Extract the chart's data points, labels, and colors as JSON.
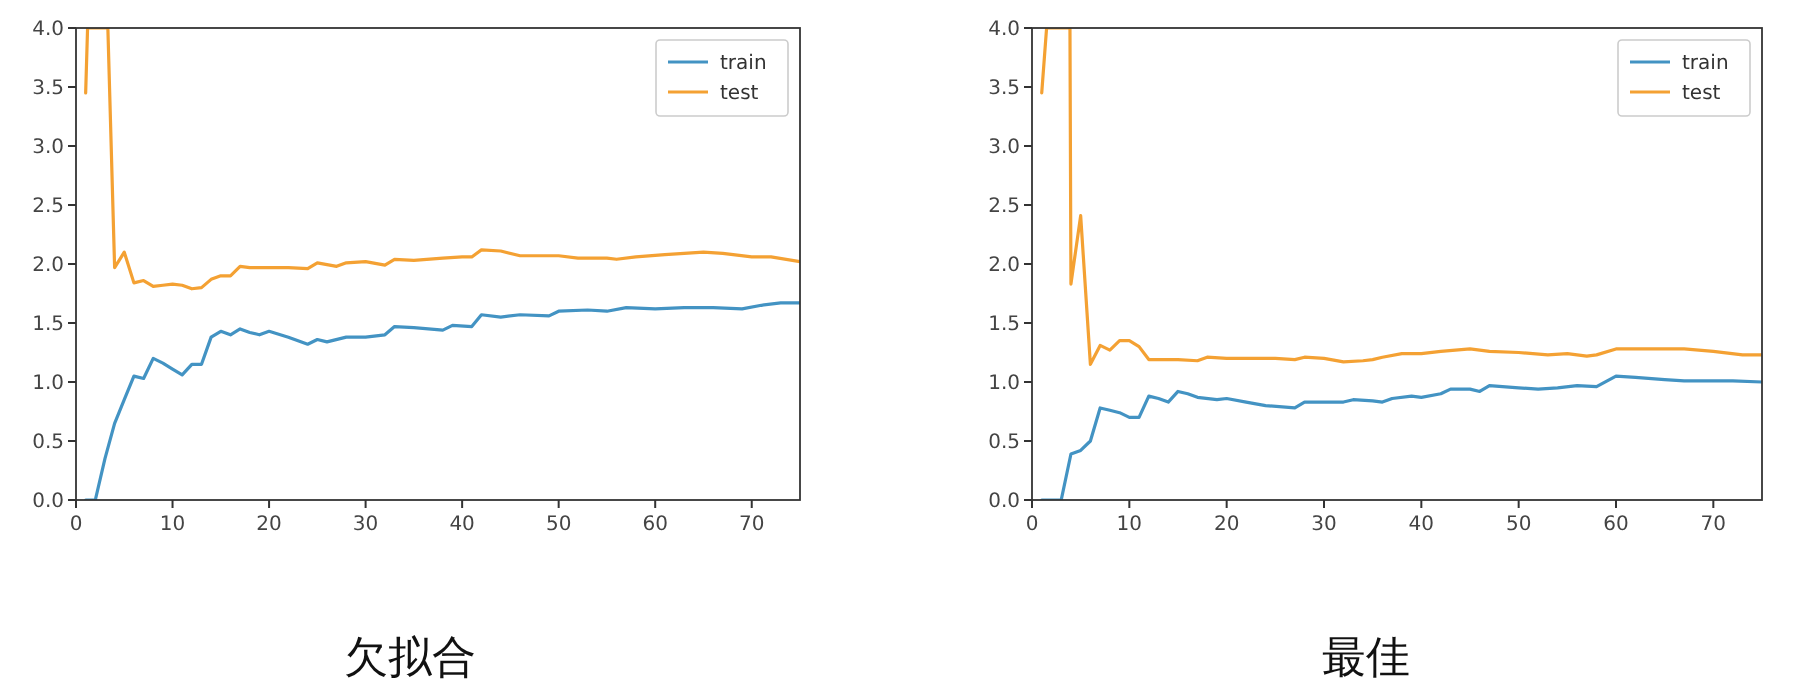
{
  "chart_data": [
    {
      "type": "line",
      "title": "欠拟合",
      "xlim": [
        0,
        75
      ],
      "ylim": [
        0,
        4
      ],
      "xticks": [
        0,
        10,
        20,
        30,
        40,
        50,
        60,
        70
      ],
      "yticks": [
        {
          "value": 0,
          "label": "0.0"
        },
        {
          "value": 0.5,
          "label": "0.5"
        },
        {
          "value": 1,
          "label": "1.0"
        },
        {
          "value": 1.5,
          "label": "1.5"
        },
        {
          "value": 2,
          "label": "2.0"
        },
        {
          "value": 2.5,
          "label": "2.5"
        },
        {
          "value": 3,
          "label": "3.0"
        },
        {
          "value": 3.5,
          "label": "3.5"
        },
        {
          "value": 4,
          "label": "4.0"
        }
      ],
      "legend": "top right",
      "grid": false,
      "series": [
        {
          "name": "train",
          "color": "#4393c3",
          "x": [
            1,
            2,
            3,
            4,
            5,
            6,
            7,
            8,
            9,
            10,
            11,
            12,
            13,
            14,
            15,
            16,
            17,
            18,
            19,
            20,
            22,
            24,
            25,
            26,
            28,
            30,
            32,
            33,
            35,
            38,
            39,
            41,
            42,
            44,
            46,
            49,
            50,
            53,
            55,
            57,
            60,
            63,
            66,
            69,
            71,
            73,
            75
          ],
          "values": [
            0,
            0,
            0.35,
            0.65,
            0.85,
            1.05,
            1.03,
            1.2,
            1.16,
            1.11,
            1.06,
            1.15,
            1.15,
            1.38,
            1.43,
            1.4,
            1.45,
            1.42,
            1.4,
            1.43,
            1.38,
            1.32,
            1.36,
            1.34,
            1.38,
            1.38,
            1.4,
            1.47,
            1.46,
            1.44,
            1.48,
            1.47,
            1.57,
            1.55,
            1.57,
            1.56,
            1.6,
            1.61,
            1.6,
            1.63,
            1.62,
            1.63,
            1.63,
            1.62,
            1.65,
            1.67,
            1.67
          ]
        },
        {
          "name": "test",
          "color": "#f4a133",
          "x": [
            1,
            1.2,
            3.3,
            4,
            5,
            6,
            7,
            8,
            9,
            10,
            11,
            12,
            13,
            14,
            15,
            16,
            17,
            18,
            20,
            22,
            24,
            25,
            27,
            28,
            30,
            32,
            33,
            35,
            38,
            40,
            41,
            42,
            44,
            46,
            50,
            52,
            55,
            56,
            58,
            61,
            63,
            65,
            67,
            70,
            72,
            75
          ],
          "values": [
            3.45,
            4,
            4,
            1.97,
            2.1,
            1.84,
            1.86,
            1.81,
            1.82,
            1.83,
            1.82,
            1.79,
            1.8,
            1.87,
            1.9,
            1.9,
            1.98,
            1.97,
            1.97,
            1.97,
            1.96,
            2.01,
            1.98,
            2.01,
            2.02,
            1.99,
            2.04,
            2.03,
            2.05,
            2.06,
            2.06,
            2.12,
            2.11,
            2.07,
            2.07,
            2.05,
            2.05,
            2.04,
            2.06,
            2.08,
            2.09,
            2.1,
            2.09,
            2.06,
            2.06,
            2.02
          ]
        }
      ]
    },
    {
      "type": "line",
      "title": "最佳",
      "xlim": [
        0,
        75
      ],
      "ylim": [
        0,
        4
      ],
      "xticks": [
        0,
        10,
        20,
        30,
        40,
        50,
        60,
        70
      ],
      "yticks": [
        {
          "value": 0,
          "label": "0.0"
        },
        {
          "value": 0.5,
          "label": "0.5"
        },
        {
          "value": 1,
          "label": "1.0"
        },
        {
          "value": 1.5,
          "label": "1.5"
        },
        {
          "value": 2,
          "label": "2.0"
        },
        {
          "value": 2.5,
          "label": "2.5"
        },
        {
          "value": 3,
          "label": "3.0"
        },
        {
          "value": 3.5,
          "label": "3.5"
        },
        {
          "value": 4,
          "label": "4.0"
        }
      ],
      "legend": "top right",
      "grid": false,
      "series": [
        {
          "name": "train",
          "color": "#4393c3",
          "x": [
            1,
            2,
            3,
            4,
            5,
            6,
            7,
            8,
            9,
            10,
            11,
            12,
            13,
            14,
            15,
            16,
            17,
            19,
            20,
            22,
            24,
            27,
            28,
            30,
            32,
            33,
            35,
            36,
            37,
            39,
            40,
            42,
            43,
            45,
            46,
            47,
            50,
            52,
            54,
            56,
            58,
            60,
            62,
            65,
            67,
            70,
            72,
            75
          ],
          "values": [
            0,
            0,
            0,
            0.39,
            0.42,
            0.5,
            0.78,
            0.76,
            0.74,
            0.7,
            0.7,
            0.88,
            0.86,
            0.83,
            0.92,
            0.9,
            0.87,
            0.85,
            0.86,
            0.83,
            0.8,
            0.78,
            0.83,
            0.83,
            0.83,
            0.85,
            0.84,
            0.83,
            0.86,
            0.88,
            0.87,
            0.9,
            0.94,
            0.94,
            0.92,
            0.97,
            0.95,
            0.94,
            0.95,
            0.97,
            0.96,
            1.05,
            1.04,
            1.02,
            1.01,
            1.01,
            1.01,
            1.0
          ]
        },
        {
          "name": "test",
          "color": "#f4a133",
          "x": [
            1,
            1.5,
            3.9,
            4,
            5,
            6,
            7,
            8,
            9,
            10,
            11,
            12,
            13,
            15,
            17,
            18,
            20,
            22,
            25,
            27,
            28,
            30,
            32,
            34,
            35,
            36,
            38,
            40,
            42,
            45,
            47,
            50,
            53,
            55,
            57,
            58,
            60,
            63,
            67,
            70,
            73,
            75
          ],
          "values": [
            3.45,
            4,
            4,
            1.83,
            2.41,
            1.15,
            1.31,
            1.27,
            1.35,
            1.35,
            1.3,
            1.19,
            1.19,
            1.19,
            1.18,
            1.21,
            1.2,
            1.2,
            1.2,
            1.19,
            1.21,
            1.2,
            1.17,
            1.18,
            1.19,
            1.21,
            1.24,
            1.24,
            1.26,
            1.28,
            1.26,
            1.25,
            1.23,
            1.24,
            1.22,
            1.23,
            1.28,
            1.28,
            1.28,
            1.26,
            1.23,
            1.23
          ]
        }
      ]
    }
  ]
}
